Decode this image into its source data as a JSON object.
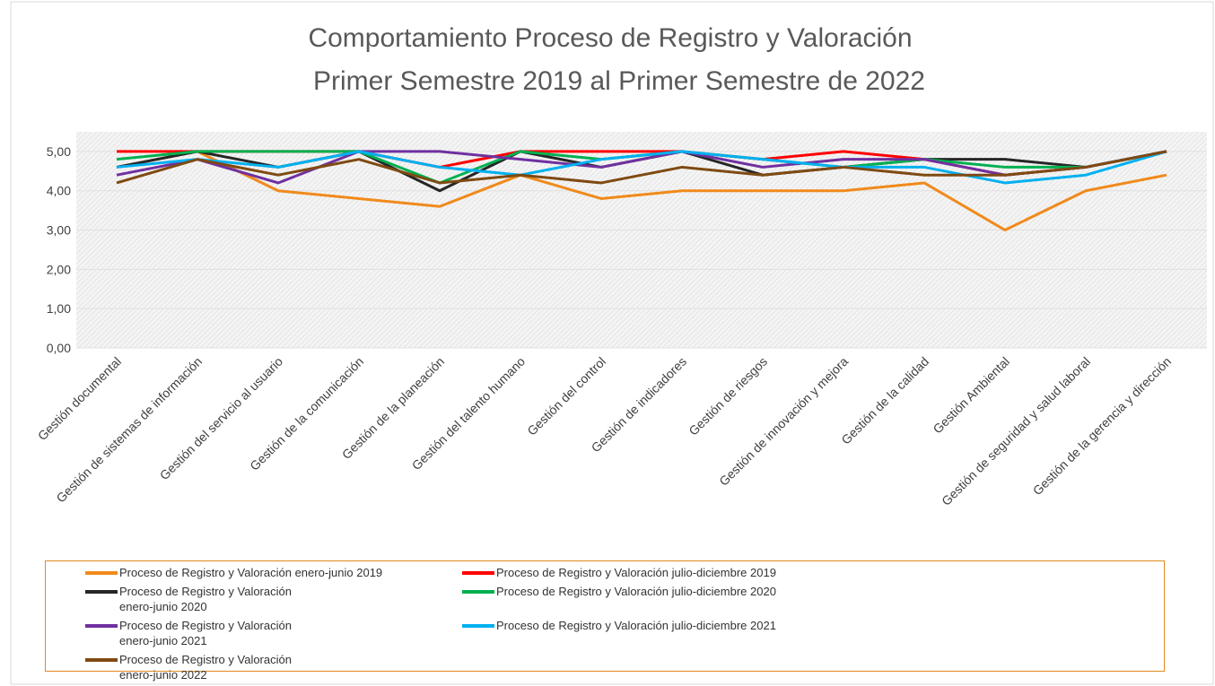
{
  "chart_data": {
    "type": "line",
    "title": "Comportamiento Proceso de Registro y Valoración",
    "subtitle": "Primer Semestre 2019 al Primer Semestre de 2022",
    "categories": [
      "Gestión documental",
      "Gestión de sistemas de información",
      "Gestión del servicio al usuario",
      "Gestión de la comunicación",
      "Gestión de la planeación",
      "Gestión del talento humano",
      "Gestión del control",
      "Gestión de indicadores",
      "Gestión de riesgos",
      "Gestión de innovación y mejora",
      "Gestión de la calidad",
      "Gestión Ambiental",
      "Gestión de seguridad y salud laboral",
      "Gestión de la gerencia y dirección"
    ],
    "series": [
      {
        "name": "Proceso de Registro y Valoración enero-junio 2019",
        "color": "#f08a1c",
        "values": [
          4.6,
          5.0,
          4.0,
          3.8,
          3.6,
          4.4,
          3.8,
          4.0,
          4.0,
          4.0,
          4.2,
          3.0,
          4.0,
          4.4
        ]
      },
      {
        "name": "Proceso de Registro y Valoración julio-diciembre 2019",
        "color": "#ff0000",
        "values": [
          5.0,
          5.0,
          5.0,
          5.0,
          4.6,
          5.0,
          5.0,
          5.0,
          4.8,
          5.0,
          4.8,
          4.4,
          4.6,
          5.0
        ]
      },
      {
        "name": "Proceso de Registro y Valoración\nenero-junio 2020",
        "color": "#262626",
        "values": [
          4.6,
          5.0,
          4.6,
          5.0,
          4.0,
          5.0,
          4.6,
          5.0,
          4.4,
          4.6,
          4.8,
          4.8,
          4.6,
          5.0
        ]
      },
      {
        "name": "Proceso de Registro y Valoración julio-diciembre 2020",
        "color": "#00b050",
        "values": [
          4.8,
          5.0,
          5.0,
          5.0,
          4.2,
          5.0,
          4.8,
          5.0,
          4.8,
          4.6,
          4.8,
          4.6,
          4.6,
          5.0
        ]
      },
      {
        "name": "Proceso de Registro y Valoración\nenero-junio 2021",
        "color": "#7030a0",
        "values": [
          4.4,
          4.8,
          4.2,
          5.0,
          5.0,
          4.8,
          4.6,
          5.0,
          4.6,
          4.8,
          4.8,
          4.4,
          4.6,
          5.0
        ]
      },
      {
        "name": "Proceso de Registro y Valoración julio-diciembre 2021",
        "color": "#00b0f0",
        "values": [
          4.6,
          4.8,
          4.6,
          5.0,
          4.6,
          4.4,
          4.8,
          5.0,
          4.8,
          4.6,
          4.6,
          4.2,
          4.4,
          5.0
        ]
      },
      {
        "name": "Proceso de Registro y Valoración\nenero-junio 2022",
        "color": "#7f4a12",
        "values": [
          4.2,
          4.8,
          4.4,
          4.8,
          4.2,
          4.4,
          4.2,
          4.6,
          4.4,
          4.6,
          4.4,
          4.4,
          4.6,
          5.0
        ]
      }
    ],
    "ylim": [
      0,
      5.5
    ],
    "yticks": [
      {
        "value": 0,
        "label": "0,00"
      },
      {
        "value": 1,
        "label": "1,00"
      },
      {
        "value": 2,
        "label": "2,00"
      },
      {
        "value": 3,
        "label": "3,00"
      },
      {
        "value": 4,
        "label": "4,00"
      },
      {
        "value": 5,
        "label": "5,00"
      }
    ],
    "grid": true
  }
}
